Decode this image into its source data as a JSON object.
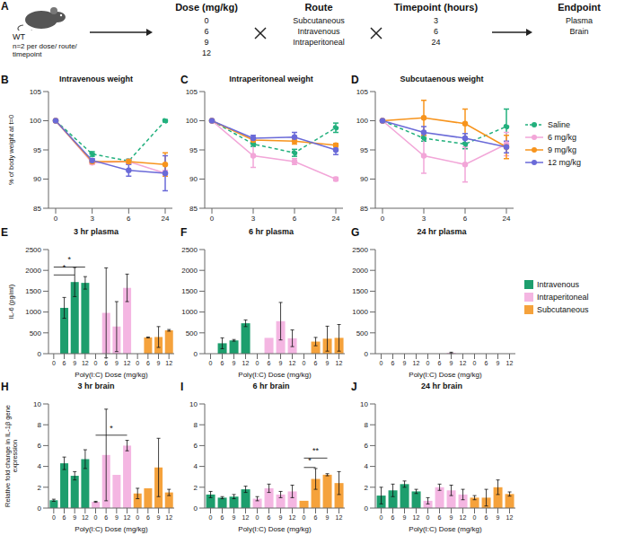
{
  "panel_a": {
    "letter": "A",
    "subject": {
      "label": "WT",
      "note": "n=2 per dose/ route/ timepoint"
    },
    "columns": [
      {
        "title": "Dose (mg/kg)",
        "items": [
          "0",
          "6",
          "9",
          "12"
        ]
      },
      {
        "title": "Route",
        "items": [
          "Subcutaneous",
          "Intravenous",
          "Intraperitoneal"
        ]
      },
      {
        "title": "Timepoint (hours)",
        "items": [
          "3",
          "6",
          "24"
        ]
      },
      {
        "title": "Endpoint",
        "items": [
          "Plasma",
          "Brain"
        ]
      }
    ]
  },
  "chart_data": [
    {
      "panel": "B",
      "type": "line",
      "title": "Intravenous weight",
      "y_label": "% of body weight at t=0",
      "marker": "circle",
      "categories": [
        "0",
        "3",
        "6",
        "24"
      ],
      "ylim": [
        85,
        105
      ],
      "yticks": [
        85,
        90,
        95,
        100,
        105
      ],
      "series": [
        {
          "name": "Saline",
          "color": "#22b07d",
          "line_style": "dashed",
          "values": [
            100,
            94.3,
            93.1,
            100
          ],
          "errors": [
            0,
            0.4,
            0.3,
            0.2
          ]
        },
        {
          "name": "6 mg/kg",
          "color": "#f2a6d8",
          "line_style": "solid",
          "values": [
            100,
            92.8,
            93,
            91
          ],
          "errors": [
            0,
            0.3,
            0.4,
            0.5
          ]
        },
        {
          "name": "9 mg/kg",
          "color": "#f7941d",
          "line_style": "solid",
          "values": [
            100,
            93,
            93,
            92.5
          ],
          "errors": [
            0,
            0.3,
            0.3,
            2
          ]
        },
        {
          "name": "12 mg/kg",
          "color": "#6a6ad8",
          "line_style": "solid",
          "values": [
            100,
            93.2,
            91.5,
            91
          ],
          "errors": [
            0,
            0.3,
            1,
            3
          ]
        }
      ]
    },
    {
      "panel": "C",
      "type": "line",
      "title": "Intraperitoneal weight",
      "marker": "circle",
      "categories": [
        "0",
        "3",
        "6",
        "24"
      ],
      "ylim": [
        85,
        105
      ],
      "yticks": [
        85,
        90,
        95,
        100,
        105
      ],
      "series": [
        {
          "name": "Saline",
          "color": "#22b07d",
          "line_style": "dashed",
          "values": [
            100,
            96,
            94.5,
            98.8
          ],
          "errors": [
            0,
            0.4,
            0.6,
            0.8
          ]
        },
        {
          "name": "6 mg/kg",
          "color": "#f2a6d8",
          "line_style": "solid",
          "values": [
            100,
            94,
            93,
            90
          ],
          "errors": [
            0,
            2,
            0.5,
            0.3
          ]
        },
        {
          "name": "9 mg/kg",
          "color": "#f7941d",
          "line_style": "solid",
          "values": [
            100,
            96.7,
            96.5,
            95.8
          ],
          "errors": [
            0,
            0.5,
            0.5,
            0.3
          ]
        },
        {
          "name": "12 mg/kg",
          "color": "#6a6ad8",
          "line_style": "solid",
          "values": [
            100,
            97,
            97.2,
            95
          ],
          "errors": [
            0,
            0.5,
            0.8,
            0.8
          ]
        }
      ]
    },
    {
      "panel": "D",
      "type": "line",
      "title": "Subcutaenous weight",
      "marker": "circle",
      "legend": "right",
      "categories": [
        "0",
        "3",
        "6",
        "24"
      ],
      "ylim": [
        85,
        105
      ],
      "yticks": [
        85,
        90,
        95,
        100,
        105
      ],
      "series": [
        {
          "name": "Saline",
          "color": "#22b07d",
          "line_style": "dashed",
          "values": [
            100,
            97,
            96,
            99
          ],
          "errors": [
            0,
            0.5,
            0.8,
            3
          ]
        },
        {
          "name": "6 mg/kg",
          "color": "#f2a6d8",
          "line_style": "solid",
          "values": [
            100,
            94,
            92.5,
            96
          ],
          "errors": [
            0,
            3,
            3,
            2
          ]
        },
        {
          "name": "9 mg/kg",
          "color": "#f7941d",
          "line_style": "solid",
          "values": [
            100,
            100.5,
            99.5,
            95.5
          ],
          "errors": [
            0,
            3,
            2.5,
            2
          ]
        },
        {
          "name": "12 mg/kg",
          "color": "#6a6ad8",
          "line_style": "solid",
          "values": [
            100,
            98,
            97,
            95.5
          ],
          "errors": [
            0,
            1,
            0.8,
            1
          ]
        }
      ]
    },
    {
      "panel": "E",
      "type": "bar",
      "title": "3 hr plasma",
      "y_label": "IL-6 (pg/ml)",
      "x_label": "Poly(I:C) Dose (mg/kg)",
      "categories": [
        "0",
        "6",
        "9",
        "12",
        "0",
        "6",
        "9",
        "12",
        "0",
        "6",
        "9",
        "12"
      ],
      "ylim": [
        0,
        2500
      ],
      "yticks": [
        0,
        500,
        1000,
        1500,
        2000,
        2500
      ],
      "series": [
        {
          "name": "Intravenous",
          "color": "#1d9e6d",
          "values": [
            0,
            1100,
            1720,
            1700,
            null,
            null,
            null,
            null,
            null,
            null,
            null,
            null
          ],
          "errors": [
            0,
            250,
            350,
            150,
            null,
            null,
            null,
            null,
            null,
            null,
            null,
            null
          ]
        },
        {
          "name": "Intraperitoneal",
          "color": "#f4b6e2",
          "values": [
            null,
            null,
            null,
            null,
            0,
            980,
            650,
            1580,
            null,
            null,
            null,
            null
          ],
          "errors": [
            null,
            null,
            null,
            null,
            0,
            1080,
            600,
            330,
            null,
            null,
            null,
            null
          ]
        },
        {
          "name": "Subcutaneous",
          "color": "#f5a23c",
          "values": [
            null,
            null,
            null,
            null,
            null,
            null,
            null,
            null,
            0,
            390,
            400,
            560
          ],
          "errors": [
            null,
            null,
            null,
            null,
            null,
            null,
            null,
            null,
            0,
            10,
            250,
            20
          ]
        }
      ],
      "significance": [
        {
          "from": 0,
          "to": 3,
          "y": 2080,
          "label": "*"
        },
        {
          "from": 0,
          "to": 2,
          "y": 1890,
          "label": "*"
        }
      ]
    },
    {
      "panel": "F",
      "type": "bar",
      "title": "6 hr plasma",
      "x_label": "Poly(I:C) Dose (mg/kg)",
      "categories": [
        "0",
        "6",
        "9",
        "12",
        "0",
        "6",
        "9",
        "12",
        "0",
        "6",
        "9",
        "12"
      ],
      "ylim": [
        0,
        2500
      ],
      "yticks": [
        0,
        500,
        1000,
        1500,
        2000,
        2500
      ],
      "series": [
        {
          "name": "Intravenous",
          "color": "#1d9e6d",
          "values": [
            0,
            250,
            320,
            730,
            null,
            null,
            null,
            null,
            null,
            null,
            null,
            null
          ],
          "errors": [
            0,
            130,
            20,
            80,
            null,
            null,
            null,
            null,
            null,
            null,
            null,
            null
          ]
        },
        {
          "name": "Intraperitoneal",
          "color": "#f4b6e2",
          "values": [
            null,
            null,
            null,
            null,
            0,
            380,
            780,
            370,
            null,
            null,
            null,
            null
          ],
          "errors": [
            null,
            null,
            null,
            null,
            0,
            0,
            450,
            200,
            null,
            null,
            null,
            null
          ]
        },
        {
          "name": "Subcutaneous",
          "color": "#f5a23c",
          "values": [
            null,
            null,
            null,
            null,
            null,
            null,
            null,
            null,
            0,
            290,
            360,
            380
          ],
          "errors": [
            null,
            null,
            null,
            null,
            null,
            null,
            null,
            null,
            0,
            100,
            300,
            320
          ]
        }
      ]
    },
    {
      "panel": "G",
      "type": "bar",
      "title": "24 hr plasma",
      "x_label": "Poly(I:C) Dose (mg/kg)",
      "legend": "right",
      "categories": [
        "0",
        "6",
        "9",
        "12",
        "0",
        "6",
        "9",
        "12",
        "0",
        "6",
        "9",
        "12"
      ],
      "ylim": [
        0,
        2500
      ],
      "yticks": [
        0,
        500,
        1000,
        1500,
        2000,
        2500
      ],
      "series": [
        {
          "name": "Intravenous",
          "color": "#1d9e6d",
          "values": [
            0,
            0,
            0,
            0,
            null,
            null,
            null,
            null,
            null,
            null,
            null,
            null
          ],
          "errors": [
            0,
            0,
            0,
            0,
            null,
            null,
            null,
            null,
            null,
            null,
            null,
            null
          ]
        },
        {
          "name": "Intraperitoneal",
          "color": "#f4b6e2",
          "values": [
            null,
            null,
            null,
            null,
            0,
            0,
            20,
            0,
            null,
            null,
            null,
            null
          ],
          "errors": [
            null,
            null,
            null,
            null,
            0,
            0,
            15,
            0,
            null,
            null,
            null,
            null
          ]
        },
        {
          "name": "Subcutaneous",
          "color": "#f5a23c",
          "values": [
            null,
            null,
            null,
            null,
            null,
            null,
            null,
            null,
            0,
            0,
            0,
            0
          ],
          "errors": [
            null,
            null,
            null,
            null,
            null,
            null,
            null,
            null,
            0,
            0,
            0,
            0
          ]
        }
      ]
    },
    {
      "panel": "H",
      "type": "bar",
      "title": "3 hr brain",
      "y_label": "Relative fold change in IL-1β gene expression",
      "x_label": "Poly(I:C) Dose (mg/kg)",
      "categories": [
        "0",
        "6",
        "9",
        "12",
        "0",
        "6",
        "9",
        "12",
        "0",
        "6",
        "9",
        "12"
      ],
      "ylim": [
        0,
        10
      ],
      "yticks": [
        0,
        2,
        4,
        6,
        8,
        10
      ],
      "series": [
        {
          "name": "Intravenous",
          "color": "#1d9e6d",
          "values": [
            0.75,
            4.3,
            3.1,
            4.7,
            null,
            null,
            null,
            null,
            null,
            null,
            null,
            null
          ],
          "errors": [
            0.1,
            0.6,
            0.4,
            0.9,
            null,
            null,
            null,
            null,
            null,
            null,
            null,
            null
          ]
        },
        {
          "name": "Intraperitoneal",
          "color": "#f4b6e2",
          "values": [
            null,
            null,
            null,
            null,
            0.6,
            5.1,
            3.2,
            6.0,
            null,
            null,
            null,
            null
          ],
          "errors": [
            null,
            null,
            null,
            null,
            0.05,
            4.4,
            0,
            0.5,
            null,
            null,
            null,
            null
          ]
        },
        {
          "name": "Subcutaneous",
          "color": "#f5a23c",
          "values": [
            null,
            null,
            null,
            null,
            null,
            null,
            null,
            null,
            1.4,
            1.9,
            3.9,
            1.5
          ],
          "errors": [
            null,
            null,
            null,
            null,
            null,
            null,
            null,
            null,
            0.5,
            0,
            2.8,
            0.3
          ]
        }
      ],
      "significance": [
        {
          "from": 4,
          "to": 7,
          "y": 7,
          "label": "*"
        }
      ]
    },
    {
      "panel": "I",
      "type": "bar",
      "title": "6 hr brain",
      "x_label": "Poly(I:C) Dose (mg/kg)",
      "categories": [
        "0",
        "6",
        "9",
        "12",
        "0",
        "6",
        "9",
        "12",
        "0",
        "6",
        "9",
        "12"
      ],
      "ylim": [
        0,
        10
      ],
      "yticks": [
        0,
        2,
        4,
        6,
        8,
        10
      ],
      "series": [
        {
          "name": "Intravenous",
          "color": "#1d9e6d",
          "values": [
            1.3,
            1.0,
            1.1,
            1.8,
            null,
            null,
            null,
            null,
            null,
            null,
            null,
            null
          ],
          "errors": [
            0.3,
            0.1,
            0.2,
            0.3,
            null,
            null,
            null,
            null,
            null,
            null,
            null,
            null
          ]
        },
        {
          "name": "Intraperitoneal",
          "color": "#f4b6e2",
          "values": [
            null,
            null,
            null,
            null,
            0.9,
            1.9,
            1.3,
            1.6,
            null,
            null,
            null,
            null
          ],
          "errors": [
            null,
            null,
            null,
            null,
            0.2,
            0.4,
            0.3,
            0.6,
            null,
            null,
            null,
            null
          ]
        },
        {
          "name": "Subcutaneous",
          "color": "#f5a23c",
          "values": [
            null,
            null,
            null,
            null,
            null,
            null,
            null,
            null,
            0.7,
            2.8,
            3.2,
            2.4
          ],
          "errors": [
            null,
            null,
            null,
            null,
            null,
            null,
            null,
            null,
            0,
            1,
            0.1,
            1.1
          ]
        }
      ],
      "significance": [
        {
          "from": 8,
          "to": 9,
          "y": 3.9,
          "label": "*"
        },
        {
          "from": 8,
          "to": 10,
          "y": 4.8,
          "label": "**"
        }
      ]
    },
    {
      "panel": "J",
      "type": "bar",
      "title": "24 hr brain",
      "x_label": "Poly(I:C) Dose (mg/kg)",
      "categories": [
        "0",
        "6",
        "9",
        "12",
        "0",
        "6",
        "9",
        "12",
        "0",
        "6",
        "9",
        "12"
      ],
      "ylim": [
        0,
        10
      ],
      "yticks": [
        0,
        2,
        4,
        6,
        8,
        10
      ],
      "series": [
        {
          "name": "Intravenous",
          "color": "#1d9e6d",
          "values": [
            1.2,
            1.7,
            2.3,
            1.6,
            null,
            null,
            null,
            null,
            null,
            null,
            null,
            null
          ],
          "errors": [
            0.8,
            0.6,
            0.3,
            0.2,
            null,
            null,
            null,
            null,
            null,
            null,
            null,
            null
          ]
        },
        {
          "name": "Intraperitoneal",
          "color": "#f4b6e2",
          "values": [
            null,
            null,
            null,
            null,
            0.7,
            2.0,
            1.7,
            1.3,
            null,
            null,
            null,
            null
          ],
          "errors": [
            null,
            null,
            null,
            null,
            0.3,
            0.3,
            0.5,
            0.5,
            null,
            null,
            null,
            null
          ]
        },
        {
          "name": "Subcutaneous",
          "color": "#f5a23c",
          "values": [
            null,
            null,
            null,
            null,
            null,
            null,
            null,
            null,
            1.0,
            1.0,
            2.0,
            1.35
          ],
          "errors": [
            null,
            null,
            null,
            null,
            null,
            null,
            null,
            null,
            0.2,
            0.8,
            0.7,
            0.2
          ]
        }
      ]
    }
  ]
}
